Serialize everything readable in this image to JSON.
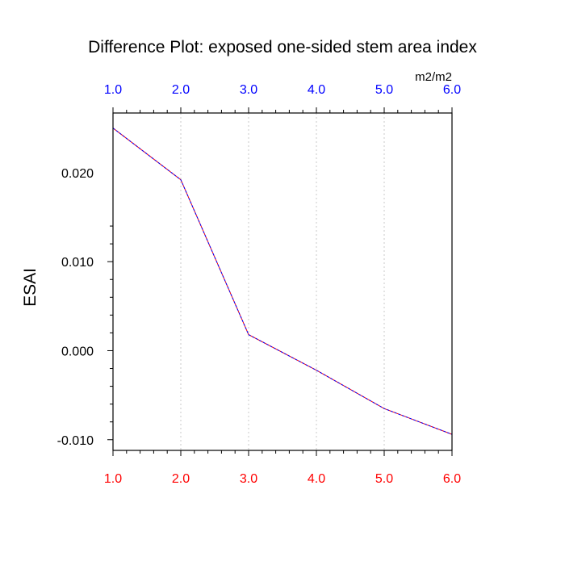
{
  "chart_data": {
    "type": "line",
    "title": "Difference Plot: exposed one-sided stem area index",
    "units": "m2/m2",
    "ylabel": "ESAI",
    "xlim": [
      1.0,
      6.0
    ],
    "ylim": [
      -0.0112,
      0.0267
    ],
    "x_ticks": [
      "1.0",
      "2.0",
      "3.0",
      "4.0",
      "5.0",
      "6.0"
    ],
    "y_ticks": [
      "0.020",
      "0.010",
      "0.000",
      "-0.010"
    ],
    "y_tick_values": [
      0.02,
      0.01,
      0.0,
      -0.01
    ],
    "grid": "vertical-dotted",
    "top_axis_color": "#0000ff",
    "bottom_axis_color": "#ff0000",
    "series": [
      {
        "x": [
          1.0,
          2.0,
          3.0,
          4.0,
          5.0,
          6.0
        ],
        "values": [
          0.025,
          0.0192,
          0.0018,
          -0.0022,
          -0.0065,
          -0.0094
        ],
        "colors": [
          "#ff0000",
          "#0000ff"
        ]
      }
    ]
  }
}
